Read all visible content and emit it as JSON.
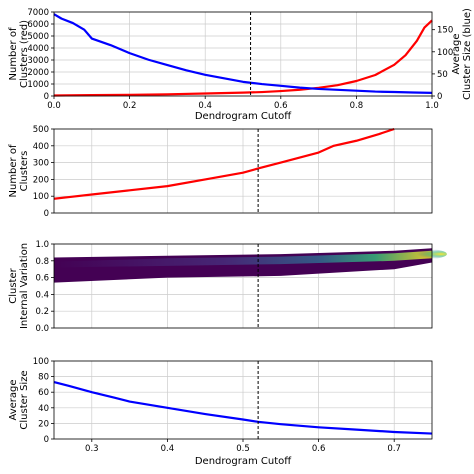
{
  "chart_data": [
    {
      "type": "line",
      "xlabel": "Dendrogram Cutoff",
      "ylabel": "Number of Clusters (red)",
      "ylabel2": "Average Cluster Size (blue)",
      "xlim": [
        0.0,
        1.0
      ],
      "ylim": [
        0,
        7000
      ],
      "ylim2": [
        0,
        190
      ],
      "xticks": [
        "0.0",
        "0.2",
        "0.4",
        "0.6",
        "0.8",
        "1.0"
      ],
      "yticks": [
        "0",
        "1000",
        "2000",
        "3000",
        "4000",
        "5000",
        "6000",
        "7000"
      ],
      "yticks2": [
        "0",
        "50",
        "100",
        "150"
      ],
      "grid": true,
      "cutoff_line": 0.52,
      "series": [
        {
          "color": "#ff0000",
          "axis": "left",
          "x": [
            0.0,
            0.1,
            0.2,
            0.3,
            0.4,
            0.5,
            0.55,
            0.6,
            0.65,
            0.7,
            0.75,
            0.8,
            0.85,
            0.9,
            0.93,
            0.96,
            0.98,
            1.0
          ],
          "y": [
            40,
            70,
            100,
            140,
            210,
            280,
            330,
            410,
            520,
            680,
            900,
            1250,
            1750,
            2600,
            3400,
            4600,
            5700,
            6300
          ]
        },
        {
          "color": "#0000ff",
          "axis": "right",
          "x": [
            0.0,
            0.02,
            0.05,
            0.08,
            0.1,
            0.15,
            0.2,
            0.25,
            0.3,
            0.35,
            0.4,
            0.45,
            0.5,
            0.55,
            0.6,
            0.65,
            0.7,
            0.75,
            0.8,
            0.85,
            0.9,
            0.95,
            1.0
          ],
          "y": [
            185,
            175,
            165,
            150,
            130,
            115,
            97,
            82,
            70,
            58,
            48,
            40,
            32,
            27,
            23,
            19,
            16,
            14,
            12,
            10,
            9,
            8,
            7
          ]
        }
      ]
    },
    {
      "type": "line",
      "ylabel": "Number of Clusters",
      "xlim": [
        0.25,
        0.75
      ],
      "ylim": [
        0,
        500
      ],
      "yticks": [
        "0",
        "100",
        "200",
        "300",
        "400",
        "500"
      ],
      "grid": true,
      "cutoff_line": 0.52,
      "series": [
        {
          "color": "#ff0000",
          "x": [
            0.25,
            0.27,
            0.3,
            0.35,
            0.4,
            0.45,
            0.5,
            0.52,
            0.55,
            0.6,
            0.62,
            0.65,
            0.68,
            0.7
          ],
          "y": [
            85,
            95,
            110,
            135,
            160,
            200,
            240,
            265,
            300,
            360,
            400,
            430,
            470,
            500
          ]
        }
      ]
    },
    {
      "type": "heatmap",
      "ylabel": "Cluster Internal Variation",
      "xlim": [
        0.25,
        0.75
      ],
      "ylim": [
        0.0,
        1.0
      ],
      "yticks": [
        "0.0",
        "0.2",
        "0.4",
        "0.6",
        "0.8",
        "1.0"
      ],
      "grid": true,
      "cutoff_line": 0.52,
      "band": {
        "x": [
          0.25,
          0.4,
          0.55,
          0.7,
          0.75
        ],
        "upper": [
          0.84,
          0.86,
          0.88,
          0.92,
          0.95
        ],
        "lower": [
          0.54,
          0.6,
          0.62,
          0.7,
          0.78
        ],
        "density_peak_x": 0.73,
        "density_peak_y": 0.88
      },
      "colormap": [
        "#440154",
        "#31688e",
        "#35b779",
        "#fde725"
      ]
    },
    {
      "type": "line",
      "xlabel": "Dendrogram Cutoff",
      "ylabel": "Average Cluster Size",
      "xlim": [
        0.25,
        0.75
      ],
      "ylim": [
        0,
        100
      ],
      "xticks": [
        "0.3",
        "0.4",
        "0.5",
        "0.6",
        "0.7"
      ],
      "yticks": [
        "0",
        "20",
        "40",
        "60",
        "80",
        "100"
      ],
      "grid": true,
      "cutoff_line": 0.52,
      "series": [
        {
          "color": "#0000ff",
          "x": [
            0.25,
            0.27,
            0.3,
            0.33,
            0.35,
            0.4,
            0.45,
            0.5,
            0.52,
            0.55,
            0.6,
            0.65,
            0.7,
            0.75
          ],
          "y": [
            73,
            68,
            60,
            53,
            48,
            40,
            32,
            25,
            22,
            19,
            15,
            12,
            9,
            7
          ]
        }
      ]
    }
  ]
}
